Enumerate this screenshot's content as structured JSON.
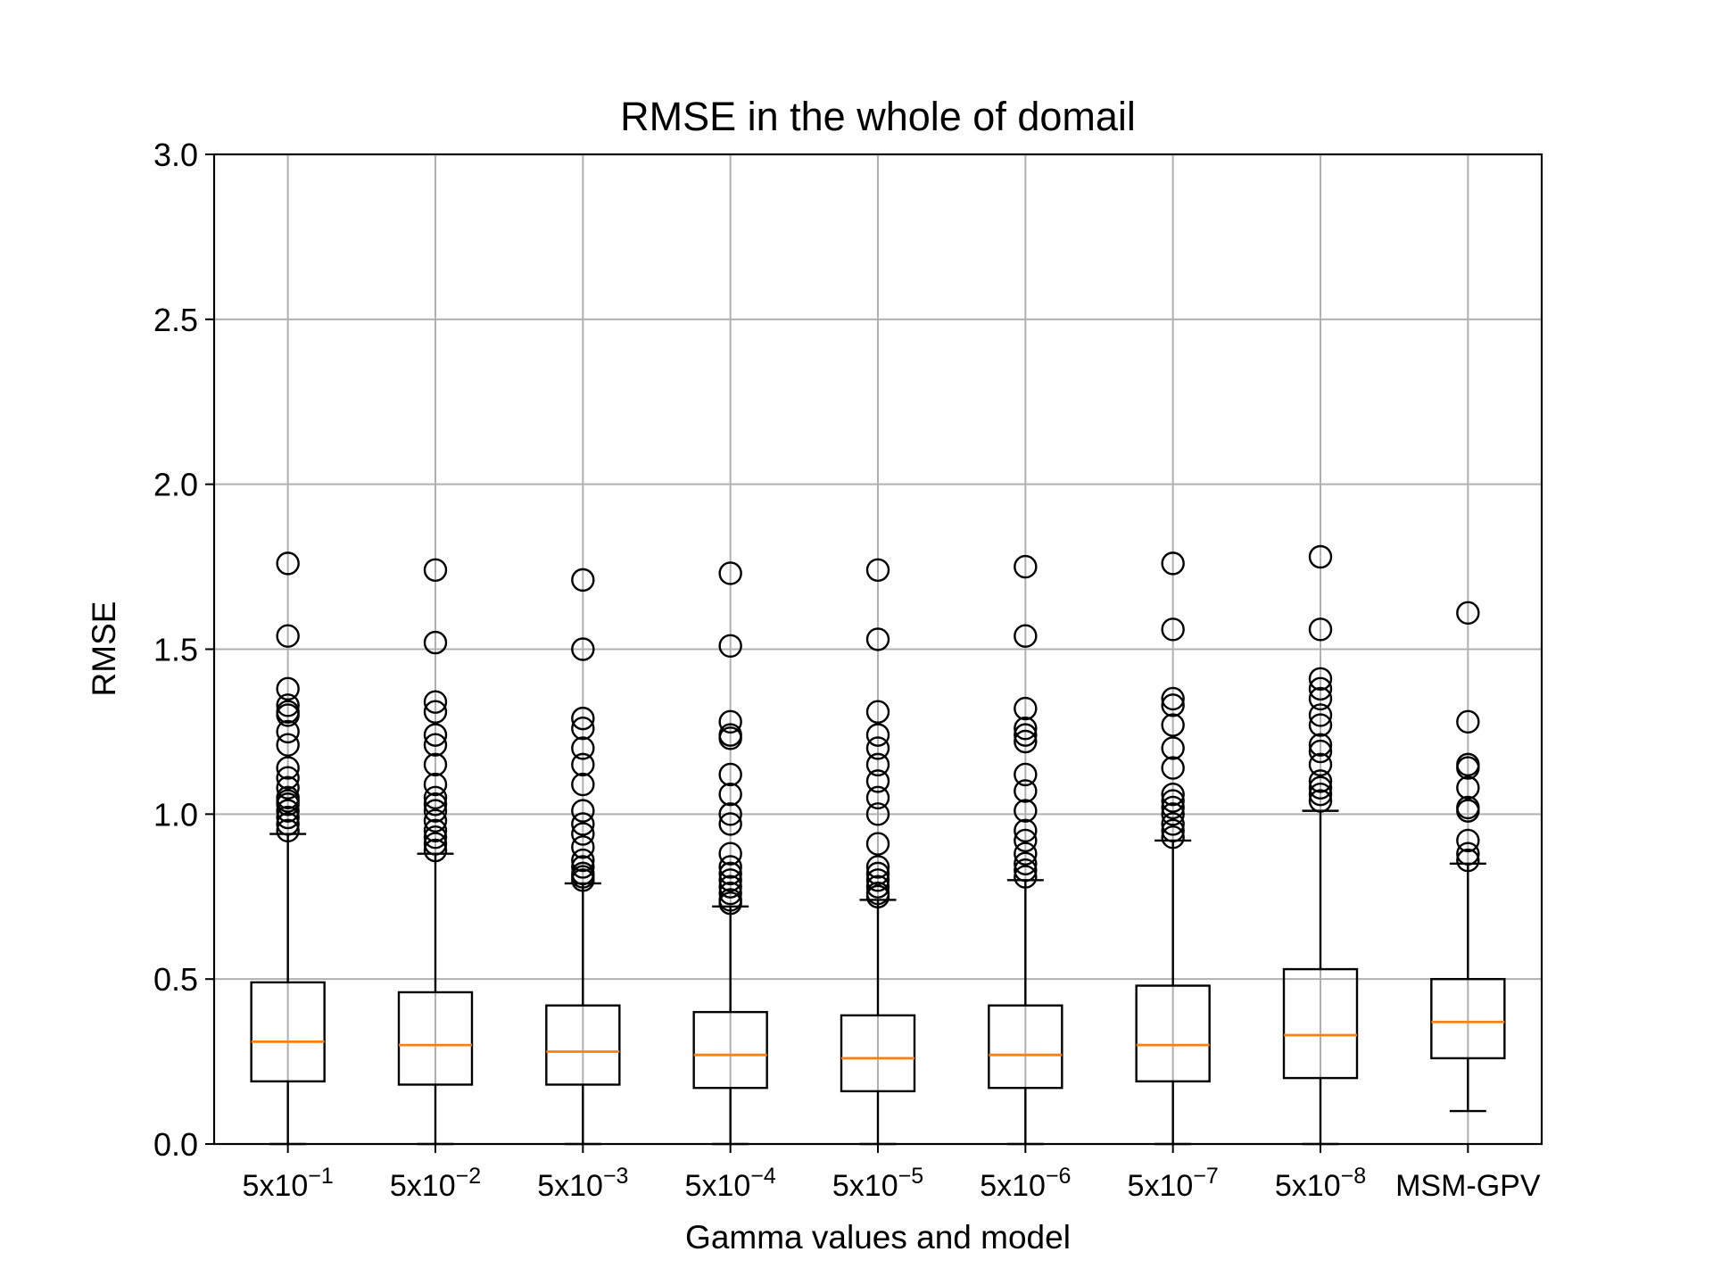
{
  "chart_data": {
    "type": "box",
    "title": "RMSE in the whole of domail",
    "xlabel": "Gamma values and model",
    "ylabel": "RMSE",
    "ylim": [
      0,
      3.0
    ],
    "yticks": [
      "0.0",
      "0.5",
      "1.0",
      "1.5",
      "2.0",
      "2.5",
      "3.0"
    ],
    "grid": true,
    "categories": [
      {
        "base": "5x10",
        "exp": "−1"
      },
      {
        "base": "5x10",
        "exp": "−2"
      },
      {
        "base": "5x10",
        "exp": "−3"
      },
      {
        "base": "5x10",
        "exp": "−4"
      },
      {
        "base": "5x10",
        "exp": "−5"
      },
      {
        "base": "5x10",
        "exp": "−6"
      },
      {
        "base": "5x10",
        "exp": "−7"
      },
      {
        "base": "5x10",
        "exp": "−8"
      },
      {
        "base": "MSM-GPV",
        "exp": ""
      }
    ],
    "colors": {
      "box": "#000000",
      "median": "#ff7f0e",
      "grid": "#b0b0b0"
    },
    "boxes": [
      {
        "whislo": 0.0,
        "q1": 0.19,
        "med": 0.31,
        "q3": 0.49,
        "whishi": 0.94,
        "fliers": [
          0.95,
          0.97,
          0.99,
          1.01,
          1.03,
          1.04,
          1.05,
          1.08,
          1.11,
          1.14,
          1.21,
          1.25,
          1.3,
          1.31,
          1.33,
          1.38,
          1.54,
          1.76
        ]
      },
      {
        "whislo": 0.0,
        "q1": 0.18,
        "med": 0.3,
        "q3": 0.46,
        "whishi": 0.88,
        "fliers": [
          0.89,
          0.91,
          0.93,
          0.95,
          0.98,
          1.01,
          1.03,
          1.05,
          1.09,
          1.15,
          1.21,
          1.24,
          1.31,
          1.34,
          1.52,
          1.74
        ]
      },
      {
        "whislo": 0.0,
        "q1": 0.18,
        "med": 0.28,
        "q3": 0.42,
        "whishi": 0.79,
        "fliers": [
          0.8,
          0.81,
          0.82,
          0.84,
          0.86,
          0.9,
          0.94,
          0.97,
          1.01,
          1.09,
          1.15,
          1.2,
          1.26,
          1.29,
          1.5,
          1.71
        ]
      },
      {
        "whislo": 0.0,
        "q1": 0.17,
        "med": 0.27,
        "q3": 0.4,
        "whishi": 0.72,
        "fliers": [
          0.73,
          0.74,
          0.76,
          0.78,
          0.8,
          0.82,
          0.84,
          0.88,
          0.97,
          1.0,
          1.06,
          1.12,
          1.23,
          1.24,
          1.28,
          1.51,
          1.73
        ]
      },
      {
        "whislo": 0.0,
        "q1": 0.16,
        "med": 0.26,
        "q3": 0.39,
        "whishi": 0.74,
        "fliers": [
          0.75,
          0.76,
          0.78,
          0.8,
          0.82,
          0.84,
          0.91,
          1.0,
          1.05,
          1.1,
          1.15,
          1.2,
          1.24,
          1.31,
          1.53,
          1.74
        ]
      },
      {
        "whislo": 0.0,
        "q1": 0.17,
        "med": 0.27,
        "q3": 0.42,
        "whishi": 0.8,
        "fliers": [
          0.81,
          0.83,
          0.85,
          0.88,
          0.92,
          0.95,
          1.01,
          1.07,
          1.12,
          1.22,
          1.24,
          1.26,
          1.32,
          1.54,
          1.75
        ]
      },
      {
        "whislo": 0.0,
        "q1": 0.19,
        "med": 0.3,
        "q3": 0.48,
        "whishi": 0.92,
        "fliers": [
          0.93,
          0.95,
          0.97,
          1.0,
          1.02,
          1.04,
          1.06,
          1.14,
          1.2,
          1.27,
          1.33,
          1.35,
          1.56,
          1.76
        ]
      },
      {
        "whislo": 0.0,
        "q1": 0.2,
        "med": 0.33,
        "q3": 0.53,
        "whishi": 1.01,
        "fliers": [
          1.04,
          1.06,
          1.08,
          1.1,
          1.15,
          1.19,
          1.21,
          1.27,
          1.3,
          1.35,
          1.38,
          1.41,
          1.56,
          1.78
        ]
      },
      {
        "whislo": 0.1,
        "q1": 0.26,
        "med": 0.37,
        "q3": 0.5,
        "whishi": 0.85,
        "fliers": [
          0.86,
          0.88,
          0.92,
          1.01,
          1.02,
          1.08,
          1.14,
          1.15,
          1.28,
          1.61
        ]
      }
    ]
  }
}
